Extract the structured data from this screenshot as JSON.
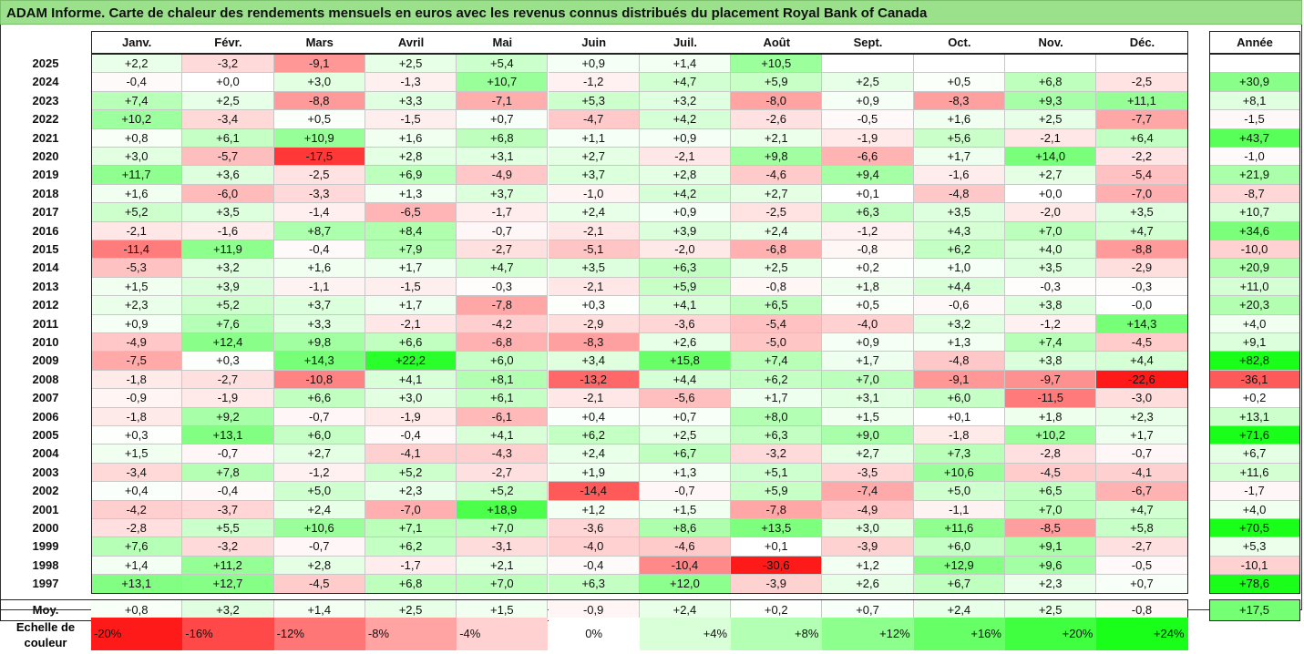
{
  "title": "ADAM Informe. Carte de chaleur des rendements mensuels en euros avec les revenus connus distribués du placement Royal Bank of Canada",
  "chart_data": {
    "type": "heatmap",
    "title": "ADAM Informe. Carte de chaleur des rendements mensuels en euros avec les revenus connus distribués du placement Royal Bank of Canada",
    "columns": [
      "Janv.",
      "Févr.",
      "Mars",
      "Avril",
      "Mai",
      "Juin",
      "Juil.",
      "Août",
      "Sept.",
      "Oct.",
      "Nov.",
      "Déc."
    ],
    "year_header": "Année",
    "rows": [
      {
        "year": "2025",
        "values": [
          "+2,2",
          "-3,2",
          "-9,1",
          "+2,5",
          "+5,4",
          "+0,9",
          "+1,4",
          "+10,5",
          "",
          "",
          "",
          ""
        ],
        "annual": ""
      },
      {
        "year": "2024",
        "values": [
          "-0,4",
          "+0,0",
          "+3,0",
          "-1,3",
          "+10,7",
          "-1,2",
          "+4,7",
          "+5,9",
          "+2,5",
          "+0,5",
          "+6,8",
          "-2,5"
        ],
        "annual": "+30,9"
      },
      {
        "year": "2023",
        "values": [
          "+7,4",
          "+2,5",
          "-8,8",
          "+3,3",
          "-7,1",
          "+5,3",
          "+3,2",
          "-8,0",
          "+0,9",
          "-8,3",
          "+9,3",
          "+11,1"
        ],
        "annual": "+8,1"
      },
      {
        "year": "2022",
        "values": [
          "+10,2",
          "-3,4",
          "+0,5",
          "-1,5",
          "+0,7",
          "-4,7",
          "+4,2",
          "-2,6",
          "-0,5",
          "+1,6",
          "+2,5",
          "-7,7"
        ],
        "annual": "-1,5"
      },
      {
        "year": "2021",
        "values": [
          "+0,8",
          "+6,1",
          "+10,9",
          "+1,6",
          "+6,8",
          "+1,1",
          "+0,9",
          "+2,1",
          "-1,9",
          "+5,6",
          "-2,1",
          "+6,4"
        ],
        "annual": "+43,7"
      },
      {
        "year": "2020",
        "values": [
          "+3,0",
          "-5,7",
          "-17,5",
          "+2,8",
          "+3,1",
          "+2,7",
          "-2,1",
          "+9,8",
          "-6,6",
          "+1,7",
          "+14,0",
          "-2,2"
        ],
        "annual": "-1,0"
      },
      {
        "year": "2019",
        "values": [
          "+11,7",
          "+3,6",
          "-2,5",
          "+6,9",
          "-4,9",
          "+3,7",
          "+2,8",
          "-4,6",
          "+9,4",
          "-1,6",
          "+2,7",
          "-5,4"
        ],
        "annual": "+21,9"
      },
      {
        "year": "2018",
        "values": [
          "+1,6",
          "-6,0",
          "-3,3",
          "+1,3",
          "+3,7",
          "-1,0",
          "+4,2",
          "+2,7",
          "+0,1",
          "-4,8",
          "+0,0",
          "-7,0"
        ],
        "annual": "-8,7"
      },
      {
        "year": "2017",
        "values": [
          "+5,2",
          "+3,5",
          "-1,4",
          "-6,5",
          "-1,7",
          "+2,4",
          "+0,9",
          "-2,5",
          "+6,3",
          "+3,5",
          "-2,0",
          "+3,5"
        ],
        "annual": "+10,7"
      },
      {
        "year": "2016",
        "values": [
          "-2,1",
          "-1,6",
          "+8,7",
          "+8,4",
          "-0,7",
          "-2,1",
          "+3,9",
          "+2,4",
          "-1,2",
          "+4,3",
          "+7,0",
          "+4,7"
        ],
        "annual": "+34,6"
      },
      {
        "year": "2015",
        "values": [
          "-11,4",
          "+11,9",
          "-0,4",
          "+7,9",
          "-2,7",
          "-5,1",
          "-2,0",
          "-6,8",
          "-0,8",
          "+6,2",
          "+4,0",
          "-8,8"
        ],
        "annual": "-10,0"
      },
      {
        "year": "2014",
        "values": [
          "-5,3",
          "+3,2",
          "+1,6",
          "+1,7",
          "+4,7",
          "+3,5",
          "+6,3",
          "+2,5",
          "+0,2",
          "+1,0",
          "+3,5",
          "-2,9"
        ],
        "annual": "+20,9"
      },
      {
        "year": "2013",
        "values": [
          "+1,5",
          "+3,9",
          "-1,1",
          "-1,5",
          "-0,3",
          "-2,1",
          "+5,9",
          "-0,8",
          "+1,8",
          "+4,4",
          "-0,3",
          "-0,3"
        ],
        "annual": "+11,0"
      },
      {
        "year": "2012",
        "values": [
          "+2,3",
          "+5,2",
          "+3,7",
          "+1,7",
          "-7,8",
          "+0,3",
          "+4,1",
          "+6,5",
          "+0,5",
          "-0,6",
          "+3,8",
          "-0,0"
        ],
        "annual": "+20,3"
      },
      {
        "year": "2011",
        "values": [
          "+0,9",
          "+7,6",
          "+3,3",
          "-2,1",
          "-4,2",
          "-2,9",
          "-3,6",
          "-5,4",
          "-4,0",
          "+3,2",
          "-1,2",
          "+14,3"
        ],
        "annual": "+4,0"
      },
      {
        "year": "2010",
        "values": [
          "-4,9",
          "+12,4",
          "+9,8",
          "+6,6",
          "-6,8",
          "-8,3",
          "+2,6",
          "-5,0",
          "+0,9",
          "+1,3",
          "+7,4",
          "-4,5"
        ],
        "annual": "+9,1"
      },
      {
        "year": "2009",
        "values": [
          "-7,5",
          "+0,3",
          "+14,3",
          "+22,2",
          "+6,0",
          "+3,4",
          "+15,8",
          "+7,4",
          "+1,7",
          "-4,8",
          "+3,8",
          "+4,4"
        ],
        "annual": "+82,8"
      },
      {
        "year": "2008",
        "values": [
          "-1,8",
          "-2,7",
          "-10,8",
          "+4,1",
          "+8,1",
          "-13,2",
          "+4,4",
          "+6,2",
          "+7,0",
          "-9,1",
          "-9,7",
          "-22,6"
        ],
        "annual": "-36,1"
      },
      {
        "year": "2007",
        "values": [
          "-0,9",
          "-1,9",
          "+6,6",
          "+3,0",
          "+6,1",
          "-2,1",
          "-5,6",
          "+1,7",
          "+3,1",
          "+6,0",
          "-11,5",
          "-3,0"
        ],
        "annual": "+0,2"
      },
      {
        "year": "2006",
        "values": [
          "-1,8",
          "+9,2",
          "-0,7",
          "-1,9",
          "-6,1",
          "+0,4",
          "+0,7",
          "+8,0",
          "+1,5",
          "+0,1",
          "+1,8",
          "+2,3"
        ],
        "annual": "+13,1"
      },
      {
        "year": "2005",
        "values": [
          "+0,3",
          "+13,1",
          "+6,0",
          "-0,4",
          "+4,1",
          "+6,2",
          "+2,5",
          "+6,3",
          "+9,0",
          "-1,8",
          "+10,2",
          "+1,7"
        ],
        "annual": "+71,6"
      },
      {
        "year": "2004",
        "values": [
          "+1,5",
          "-0,7",
          "+2,7",
          "-4,1",
          "-4,3",
          "+2,4",
          "+6,7",
          "-3,2",
          "+2,7",
          "+7,3",
          "-2,8",
          "-0,7"
        ],
        "annual": "+6,7"
      },
      {
        "year": "2003",
        "values": [
          "-3,4",
          "+7,8",
          "-1,2",
          "+5,2",
          "-2,7",
          "+1,9",
          "+1,3",
          "+5,1",
          "-3,5",
          "+10,6",
          "-4,5",
          "-4,1"
        ],
        "annual": "+11,6"
      },
      {
        "year": "2002",
        "values": [
          "+0,4",
          "-0,4",
          "+5,0",
          "+2,3",
          "+5,2",
          "-14,4",
          "-0,7",
          "+5,9",
          "-7,4",
          "+5,0",
          "+6,5",
          "-6,7"
        ],
        "annual": "-1,7"
      },
      {
        "year": "2001",
        "values": [
          "-4,2",
          "-3,7",
          "+2,4",
          "-7,0",
          "+18,9",
          "+1,2",
          "+1,5",
          "-7,8",
          "-4,9",
          "-1,1",
          "+7,0",
          "+4,7"
        ],
        "annual": "+4,0"
      },
      {
        "year": "2000",
        "values": [
          "-2,8",
          "+5,5",
          "+10,6",
          "+7,1",
          "+7,0",
          "-3,6",
          "+8,6",
          "+13,5",
          "+3,0",
          "+11,6",
          "-8,5",
          "+5,8"
        ],
        "annual": "+70,5"
      },
      {
        "year": "1999",
        "values": [
          "+7,6",
          "-3,2",
          "-0,7",
          "+6,2",
          "-3,1",
          "-4,0",
          "-4,6",
          "+0,1",
          "-3,9",
          "+6,0",
          "+9,1",
          "-2,7"
        ],
        "annual": "+5,3"
      },
      {
        "year": "1998",
        "values": [
          "+1,4",
          "+11,2",
          "+2,8",
          "-1,7",
          "+2,1",
          "-0,4",
          "-10,4",
          "-30,6",
          "+1,2",
          "+12,9",
          "+9,6",
          "-0,5"
        ],
        "annual": "-10,1"
      },
      {
        "year": "1997",
        "values": [
          "+13,1",
          "+12,7",
          "-4,5",
          "+6,8",
          "+7,0",
          "+6,3",
          "+12,0",
          "-3,9",
          "+2,6",
          "+6,7",
          "+2,3",
          "+0,7"
        ],
        "annual": "+78,6"
      }
    ],
    "average": {
      "label": "Moy.",
      "values": [
        "+0,8",
        "+3,2",
        "+1,4",
        "+2,5",
        "+1,5",
        "-0,9",
        "+2,4",
        "+0,2",
        "+0,7",
        "+2,4",
        "+2,5",
        "-0,8"
      ],
      "annual": "+17,5"
    },
    "legend": {
      "label_line1": "Echelle de",
      "label_line2": "couleur",
      "steps": [
        "-20%",
        "-16%",
        "-12%",
        "-8%",
        "-4%",
        "0%",
        "+4%",
        "+8%",
        "+12%",
        "+16%",
        "+20%",
        "+24%"
      ],
      "step_values": [
        -20,
        -16,
        -12,
        -8,
        -4,
        0,
        4,
        8,
        12,
        16,
        20,
        24
      ]
    },
    "colors": {
      "negative_max": "#ff1a1a",
      "neutral": "#ffffff",
      "positive_max": "#1aff1a",
      "title_bg": "#9be08a"
    }
  }
}
